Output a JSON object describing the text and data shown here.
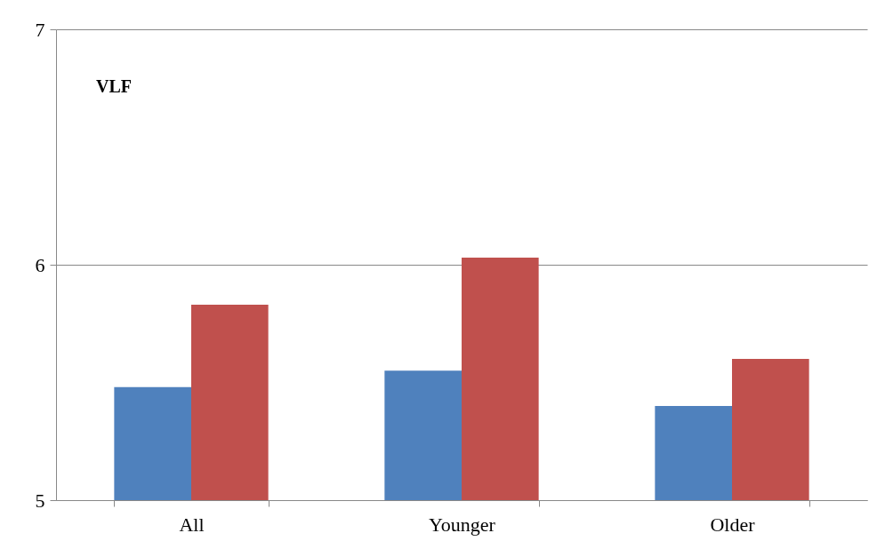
{
  "chart_data": {
    "type": "bar",
    "categories": [
      "All",
      "Younger",
      "Older"
    ],
    "series": [
      {
        "color": "#4f81bd",
        "values": [
          5.48,
          5.55,
          5.4
        ]
      },
      {
        "color": "#c0504d",
        "values": [
          5.83,
          6.03,
          5.6
        ]
      }
    ],
    "ylim": [
      5,
      7
    ],
    "yticks": [
      5,
      6,
      7
    ],
    "grid": "y",
    "annotations": [
      "VLF"
    ]
  }
}
